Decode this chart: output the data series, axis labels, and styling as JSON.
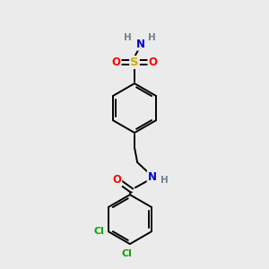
{
  "bg_color": "#ebebeb",
  "bond_color": "#000000",
  "bond_width": 1.4,
  "atom_colors": {
    "C": "#000000",
    "H": "#708090",
    "N": "#0000cc",
    "O": "#ff0000",
    "S": "#ccaa00",
    "Cl": "#00aa00"
  },
  "font_size": 8.5,
  "fig_size": [
    3.0,
    3.0
  ],
  "dpi": 100,
  "xlim": [
    0.5,
    6.5
  ],
  "ylim": [
    0.0,
    7.5
  ]
}
